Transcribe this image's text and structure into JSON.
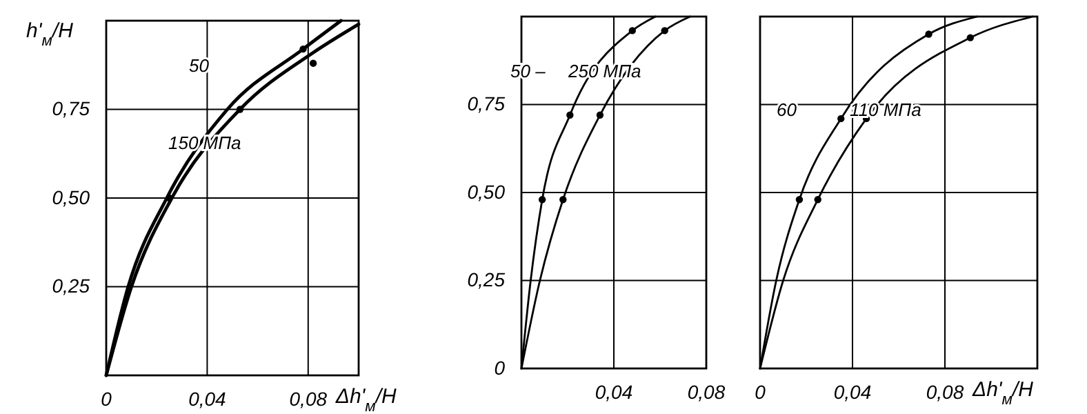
{
  "chart_data": [
    {
      "type": "line",
      "ylabel": "h'$_{м}$/H",
      "xlabel": "Δh'$_{м}$/H",
      "xlim": [
        0,
        0.1
      ],
      "ylim": [
        0,
        1
      ],
      "grid": true,
      "xticks": [
        {
          "value": 0,
          "label": "0"
        },
        {
          "value": 0.04,
          "label": "0,04"
        },
        {
          "value": 0.08,
          "label": "0,08"
        }
      ],
      "yticks": [
        {
          "value": 0.25,
          "label": "0,25"
        },
        {
          "value": 0.5,
          "label": "0,50"
        },
        {
          "value": 0.75,
          "label": "0,75"
        }
      ],
      "series": [
        {
          "color": "#000000",
          "x": [
            0,
            0.0087,
            0.024,
            0.048,
            0.078,
            0.093
          ],
          "values": [
            0,
            0.25,
            0.5,
            0.75,
            0.92,
            1.0
          ]
        },
        {
          "color": "#000000",
          "x": [
            0,
            0.01,
            0.026,
            0.053,
            0.082,
            0.1
          ],
          "values": [
            0,
            0.25,
            0.5,
            0.75,
            0.91,
            0.99
          ]
        },
        {
          "type": "scatter",
          "color": "#000000",
          "x": [
            0.025,
            0.053,
            0.078,
            0.082
          ],
          "values": [
            0.5,
            0.75,
            0.92,
            0.88
          ]
        }
      ],
      "annotations": [
        "50",
        "150 МПа"
      ]
    },
    {
      "type": "line",
      "xlim": [
        0,
        0.08
      ],
      "ylim": [
        0,
        1
      ],
      "grid": true,
      "xticks": [
        {
          "value": 0.04,
          "label": "0,04"
        },
        {
          "value": 0.08,
          "label": "0,08"
        }
      ],
      "yticks": [
        {
          "value": 0,
          "label": "0"
        },
        {
          "value": 0.25,
          "label": "0,25"
        },
        {
          "value": 0.5,
          "label": "0,50"
        },
        {
          "value": 0.75,
          "label": "0,75"
        }
      ],
      "series": [
        {
          "color": "#000000",
          "x": [
            0,
            0.004,
            0.009,
            0.021,
            0.048,
            0.058
          ],
          "values": [
            0,
            0.25,
            0.48,
            0.72,
            0.96,
            1.0
          ]
        },
        {
          "color": "#000000",
          "x": [
            0,
            0.008,
            0.018,
            0.034,
            0.062,
            0.073
          ],
          "values": [
            0,
            0.25,
            0.48,
            0.72,
            0.96,
            1.0
          ]
        },
        {
          "type": "scatter",
          "color": "#000000",
          "x": [
            0.009,
            0.021,
            0.048,
            0.018,
            0.034,
            0.062
          ],
          "values": [
            0.48,
            0.72,
            0.96,
            0.48,
            0.72,
            0.96
          ]
        }
      ],
      "annotations": [
        "50 –",
        "250 МПа"
      ]
    },
    {
      "type": "line",
      "xlabel": "Δh'$_{м}$/H",
      "xlim": [
        0,
        0.12
      ],
      "ylim": [
        0,
        1
      ],
      "grid": true,
      "tick_labels": "x",
      "xticks": [
        {
          "value": 0,
          "label": "0"
        },
        {
          "value": 0.04,
          "label": "0,04"
        },
        {
          "value": 0.08,
          "label": "0,08"
        }
      ],
      "yticks": [
        {
          "value": 0.25,
          "label": null
        },
        {
          "value": 0.5,
          "label": null
        },
        {
          "value": 0.75,
          "label": null
        }
      ],
      "series": [
        {
          "color": "#000000",
          "x": [
            0,
            0.007,
            0.017,
            0.035,
            0.073,
            0.094
          ],
          "values": [
            0,
            0.25,
            0.48,
            0.71,
            0.95,
            1.0
          ]
        },
        {
          "color": "#000000",
          "x": [
            0,
            0.01,
            0.025,
            0.046,
            0.091,
            0.118
          ],
          "values": [
            0,
            0.25,
            0.48,
            0.71,
            0.94,
            1.0
          ]
        },
        {
          "type": "scatter",
          "color": "#000000",
          "x": [
            0.017,
            0.035,
            0.073,
            0.025,
            0.046,
            0.091
          ],
          "values": [
            0.48,
            0.71,
            0.95,
            0.48,
            0.71,
            0.94
          ]
        }
      ],
      "annotations": [
        "60",
        "110 МПа"
      ]
    }
  ]
}
